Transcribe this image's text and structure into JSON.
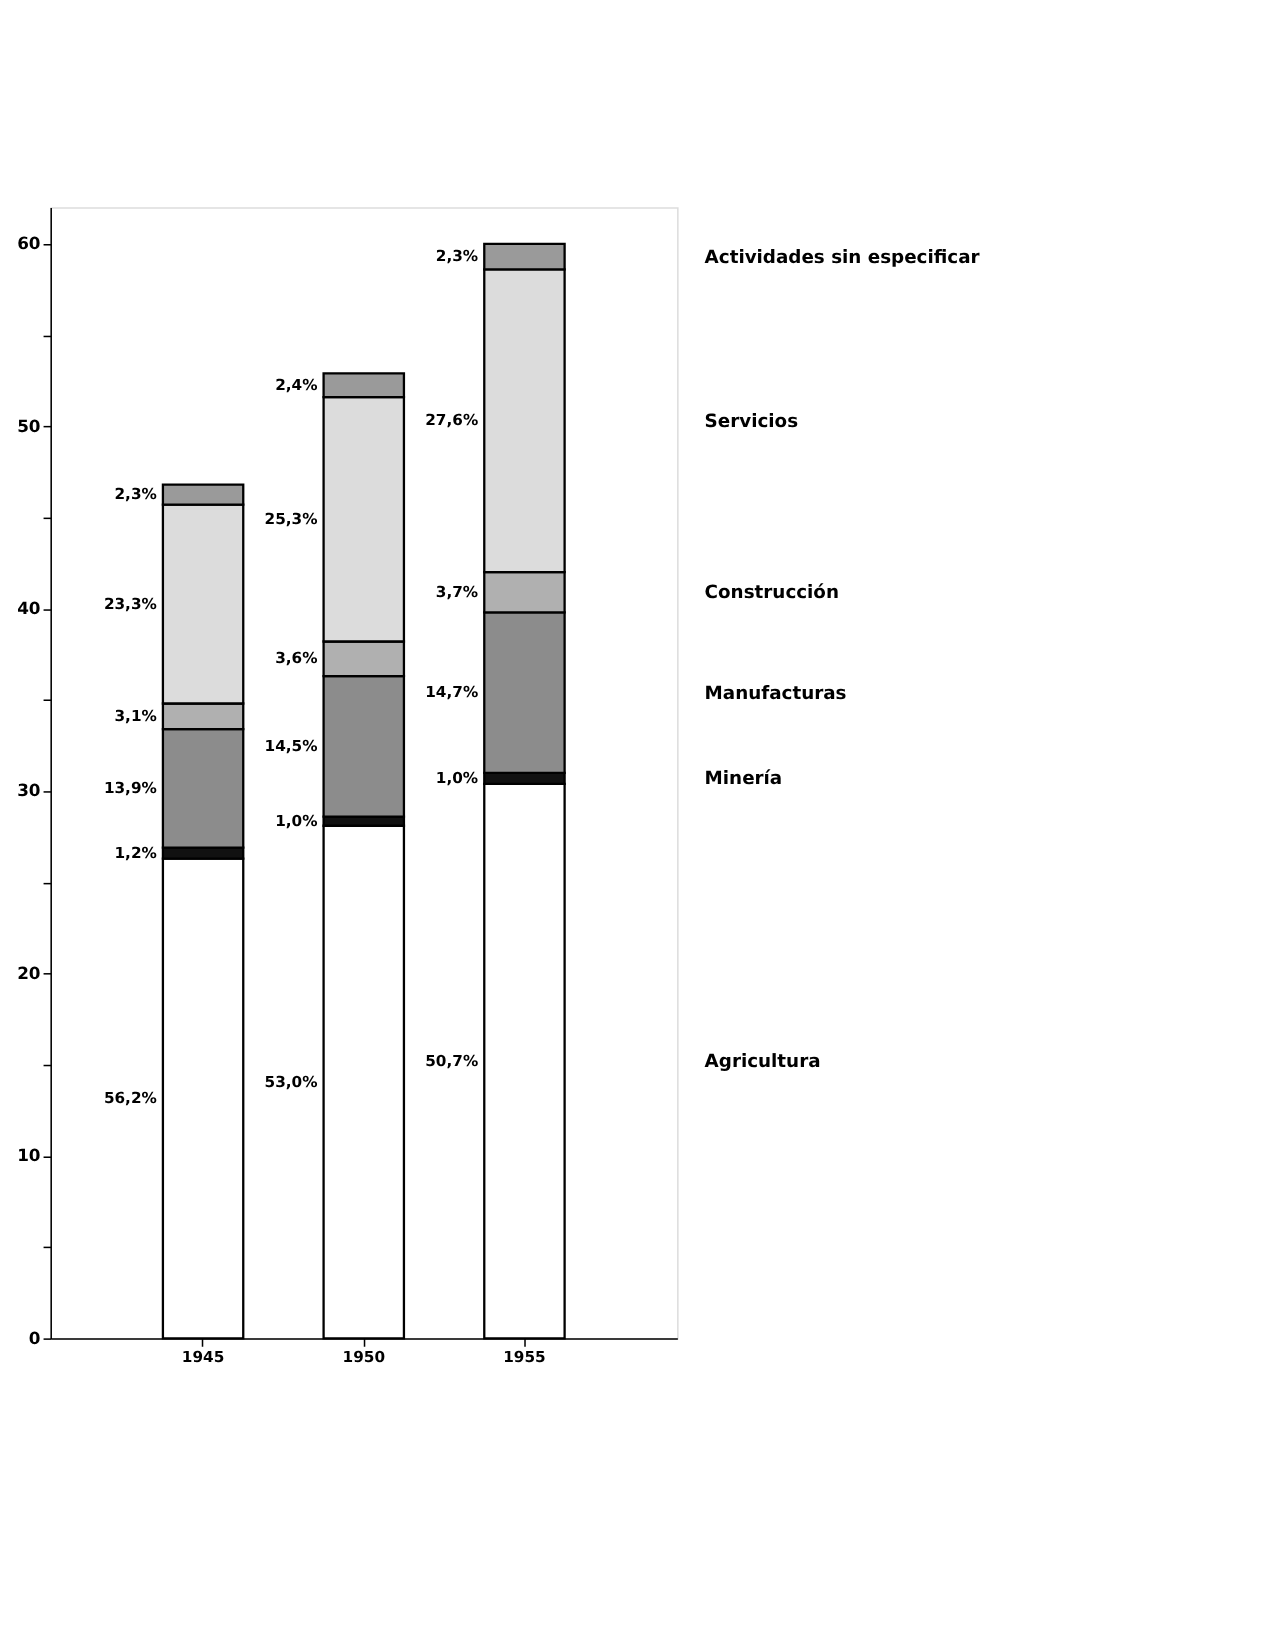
{
  "chart_data": {
    "type": "bar",
    "stacked": true,
    "categories": [
      "1945",
      "1950",
      "1955"
    ],
    "ylim": [
      0,
      62
    ],
    "yticks": [
      0,
      {
        "value": 5,
        "label": null
      },
      10,
      {
        "value": 15,
        "label": null
      },
      20,
      {
        "value": 25,
        "label": null
      },
      30,
      {
        "value": 35,
        "label": null
      },
      40,
      {
        "value": 45,
        "label": null
      },
      50,
      {
        "value": 55,
        "label": null
      },
      60
    ],
    "grid": false,
    "legend": "right",
    "series": [
      {
        "name": "Agricultura",
        "color": "#ffffff",
        "values": [
          26.3,
          28.1,
          30.4
        ]
      },
      {
        "name": "Minería",
        "color": "#111111",
        "values": [
          0.6,
          0.5,
          0.6
        ]
      },
      {
        "name": "Manufacturas",
        "color": "#8c8c8c",
        "values": [
          6.5,
          7.7,
          8.8
        ]
      },
      {
        "name": "Construcción",
        "color": "#b0b0b0",
        "values": [
          1.4,
          1.9,
          2.2
        ]
      },
      {
        "name": "Servicios",
        "color": "#dcdcdc",
        "values": [
          10.9,
          13.4,
          16.6
        ]
      },
      {
        "name": "Actividades sin especificar",
        "color": "#9a9a9a",
        "values": [
          1.1,
          1.3,
          1.4
        ]
      }
    ],
    "annotations": [
      "56,2%",
      "1,2%",
      "13,9%",
      "3,1%",
      "23,3%",
      "2,3%",
      "53,0%",
      "1,0%",
      "14,5%",
      "3,6%",
      "25,3%",
      "2,4%",
      "50,7%",
      "1,0%",
      "14,7%",
      "3,7%",
      "27,6%",
      "2,3%"
    ]
  }
}
